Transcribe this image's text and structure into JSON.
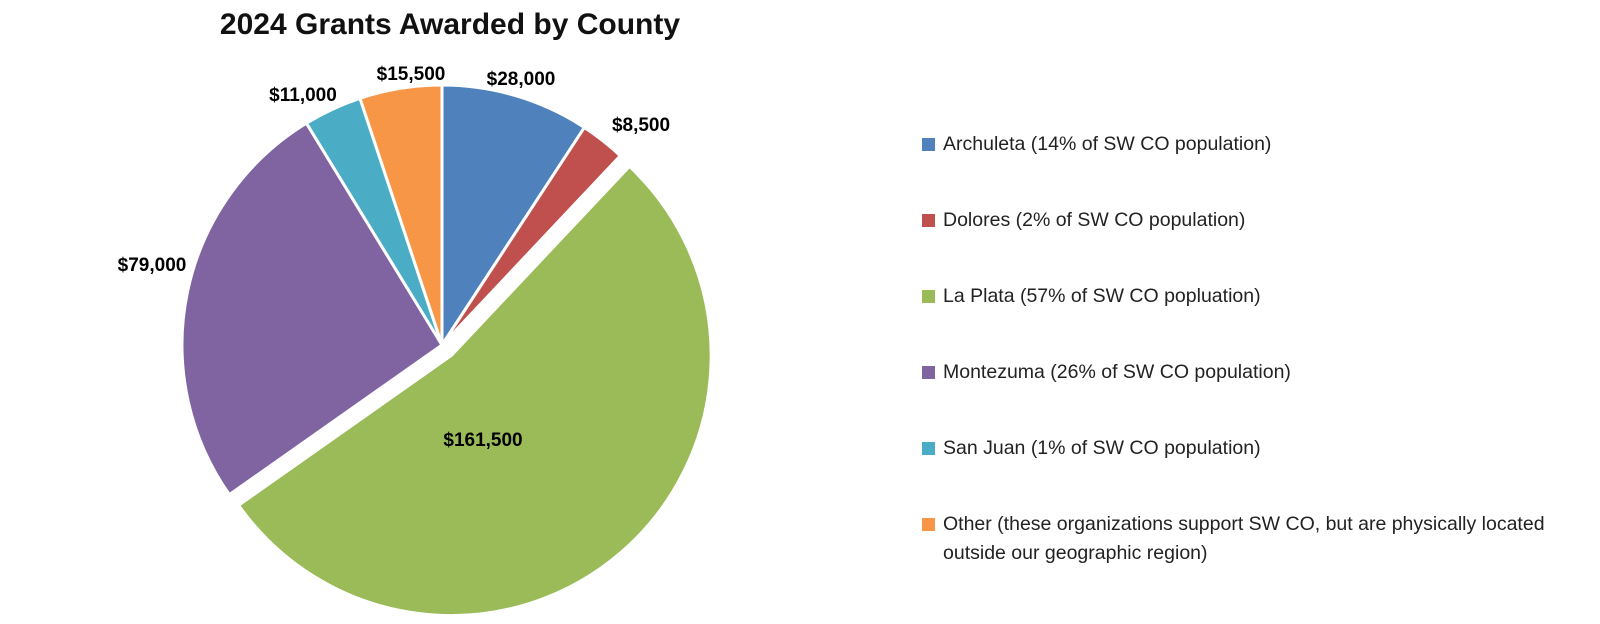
{
  "chart_data": {
    "type": "pie",
    "title": "2024 Grants Awarded by County",
    "slices": [
      {
        "name": "Archuleta (14% of SW CO population)",
        "value": 28000,
        "label": "$28,000",
        "color": "#4F81BD"
      },
      {
        "name": "Dolores (2% of SW CO population)",
        "value": 8500,
        "label": "$8,500",
        "color": "#C0504D"
      },
      {
        "name": "La Plata (57% of SW CO popluation)",
        "value": 161500,
        "label": "$161,500",
        "color": "#9BBB59"
      },
      {
        "name": "Montezuma (26% of SW CO population)",
        "value": 79000,
        "label": "$79,000",
        "color": "#8064A2"
      },
      {
        "name": "San Juan (1% of SW CO population)",
        "value": 11000,
        "label": "$11,000",
        "color": "#4BACC6"
      },
      {
        "name": "Other (these organizations support SW CO, but are physically located outside our geographic region)",
        "value": 15500,
        "label": "$15,500",
        "color": "#F79646"
      }
    ],
    "exploded_slice": "La Plata (57% of SW CO popluation)",
    "start_angle": "12 o'clock",
    "direction": "clockwise",
    "legend_position": "right"
  }
}
